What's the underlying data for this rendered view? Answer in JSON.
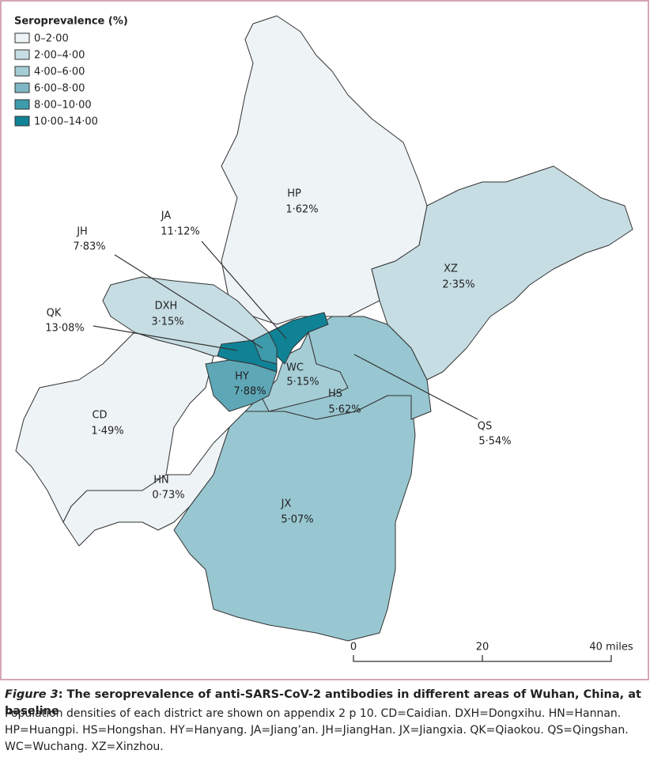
{
  "legend": {
    "title": "Seroprevalence (%)",
    "items": [
      "0–2·00",
      "2·00–4·00",
      "4·00–6·00",
      "6·00–8·00",
      "8·00–10·00",
      "10·00–14·00"
    ]
  },
  "districts": [
    {
      "code": "HP",
      "value": "1·62%"
    },
    {
      "code": "XZ",
      "value": "2·35%"
    },
    {
      "code": "DXH",
      "value": "3·15%"
    },
    {
      "code": "CD",
      "value": "1·49%"
    },
    {
      "code": "HN",
      "value": "0·73%"
    },
    {
      "code": "JX",
      "value": "5·07%"
    },
    {
      "code": "HS",
      "value": "5·62%"
    },
    {
      "code": "WC",
      "value": "5·15%"
    },
    {
      "code": "HY",
      "value": "7·88%"
    },
    {
      "code": "JA",
      "value": "11·12%"
    },
    {
      "code": "JH",
      "value": "7·83%"
    },
    {
      "code": "QK",
      "value": "13·08%"
    },
    {
      "code": "QS",
      "value": "5·54%"
    }
  ],
  "scale": [
    "0",
    "20",
    "40 miles"
  ],
  "caption": {
    "label": "Figure 3",
    "title": ": The seroprevalence of anti-SARS-CoV-2 antibodies in different areas of Wuhan, China, at baseline",
    "lines": [
      "Population densities of each district are shown on appendix 2 p 10. CD=Caidian. DXH=Dongxihu. HN=Hannan.",
      "HP=Huangpi. HS=Hongshan. HY=Hanyang. JA=Jiang’an. JH=JiangHan. JX=Jiangxia. QK=Qiaokou. QS=Qingshan.",
      "WC=Wuchang. XZ=Xinzhou."
    ]
  }
}
